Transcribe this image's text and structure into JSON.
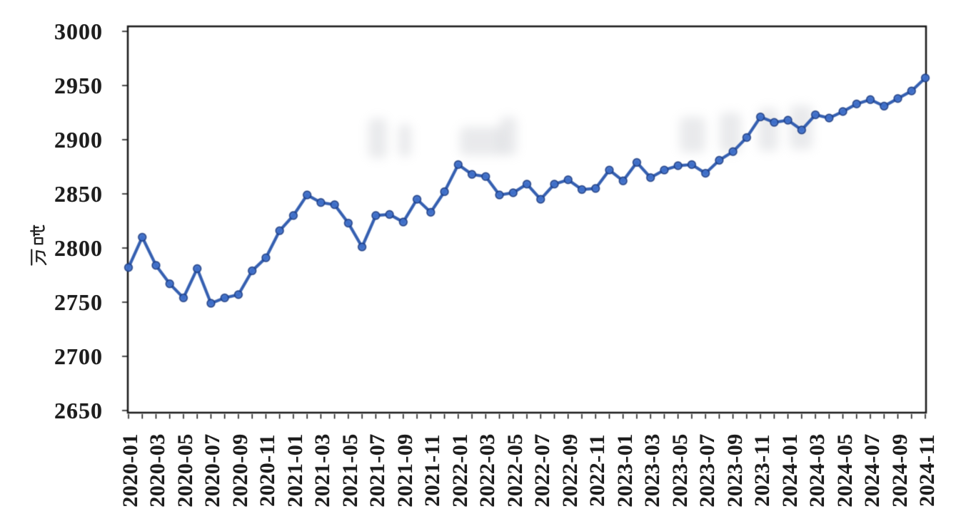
{
  "chart_data": {
    "type": "line",
    "ylabel": "万吨",
    "xlabel": "",
    "ylim": [
      2650,
      3000
    ],
    "yticks": [
      2650,
      2700,
      2750,
      2800,
      2850,
      2900,
      2950,
      3000
    ],
    "x_label_every": 2,
    "grid": "off",
    "legend": "none",
    "x": [
      "2020-01",
      "2020-02",
      "2020-03",
      "2020-04",
      "2020-05",
      "2020-06",
      "2020-07",
      "2020-08",
      "2020-09",
      "2020-10",
      "2020-11",
      "2020-12",
      "2021-01",
      "2021-02",
      "2021-03",
      "2021-04",
      "2021-05",
      "2021-06",
      "2021-07",
      "2021-08",
      "2021-09",
      "2021-10",
      "2021-11",
      "2021-12",
      "2022-01",
      "2022-02",
      "2022-03",
      "2022-04",
      "2022-05",
      "2022-06",
      "2022-07",
      "2022-08",
      "2022-09",
      "2022-10",
      "2022-11",
      "2022-12",
      "2023-01",
      "2023-02",
      "2023-03",
      "2023-04",
      "2023-05",
      "2023-06",
      "2023-07",
      "2023-08",
      "2023-09",
      "2023-10",
      "2023-11",
      "2023-12",
      "2024-01",
      "2024-02",
      "2024-03",
      "2024-04",
      "2024-05",
      "2024-06",
      "2024-07",
      "2024-08",
      "2024-09",
      "2024-10",
      "2024-11"
    ],
    "values": [
      2782,
      2810,
      2784,
      2767,
      2754,
      2781,
      2749,
      2754,
      2757,
      2779,
      2791,
      2816,
      2830,
      2849,
      2842,
      2840,
      2823,
      2801,
      2830,
      2831,
      2824,
      2845,
      2833,
      2852,
      2877,
      2868,
      2866,
      2849,
      2851,
      2859,
      2845,
      2859,
      2863,
      2854,
      2855,
      2872,
      2862,
      2879,
      2865,
      2872,
      2876,
      2877,
      2869,
      2881,
      2889,
      2902,
      2921,
      2916,
      2918,
      2909,
      2923,
      2920,
      2926,
      2933,
      2937,
      2931,
      2938,
      2945,
      2957
    ],
    "styles": {
      "line_color": "#2b57ad",
      "marker_fill": "#3f6fc9",
      "marker_edge": "#1f3f85",
      "axis_color": "#161616",
      "text_color": "#1d1d1d",
      "background": "#ffffff"
    }
  }
}
